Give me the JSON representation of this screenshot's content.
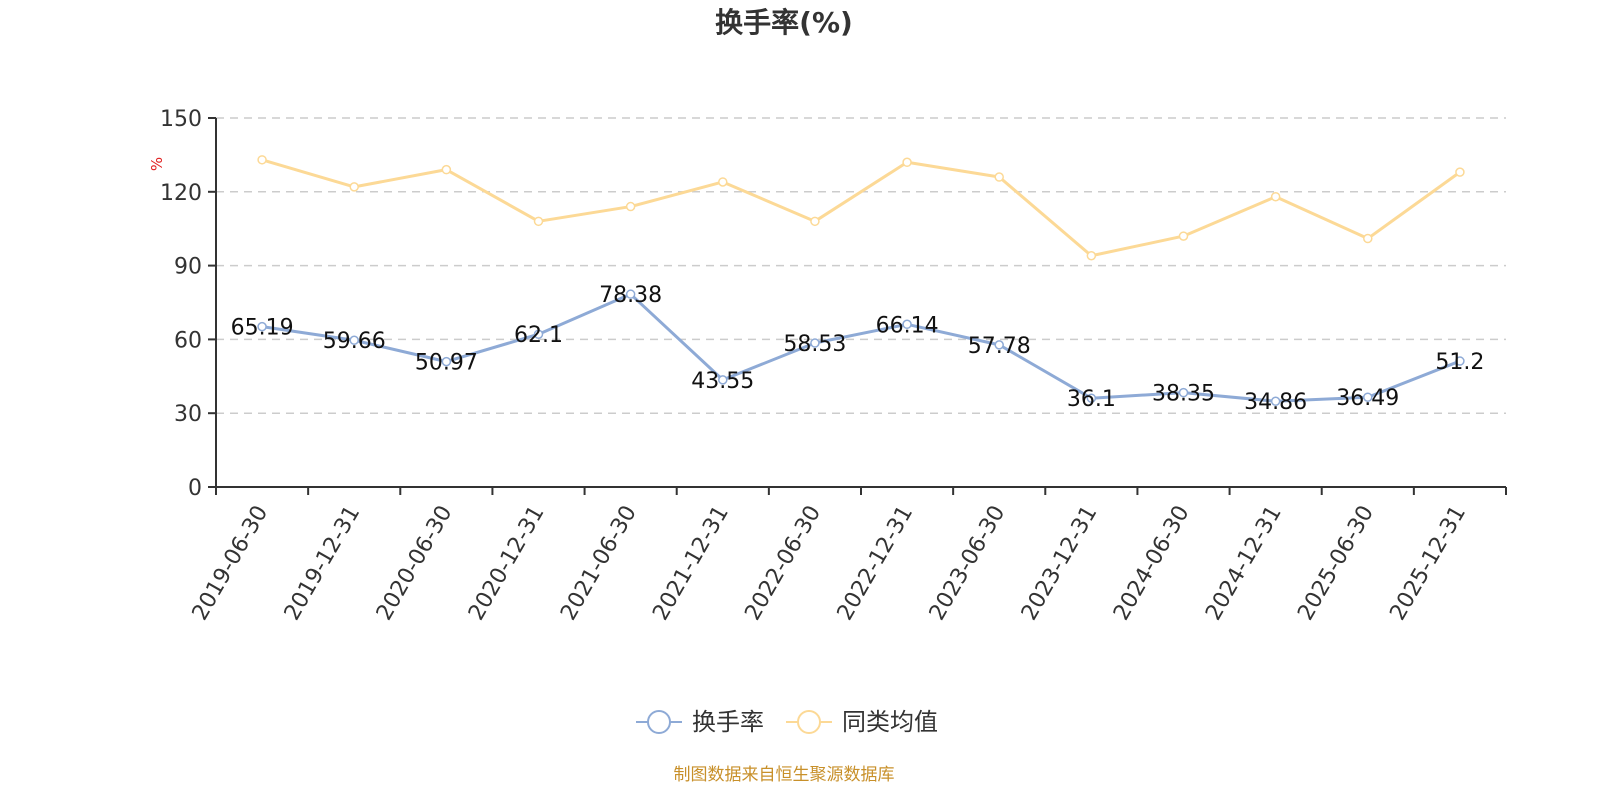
{
  "chart_data": {
    "type": "line",
    "title": "换手率(%)",
    "ylabel": "%",
    "xlabel": "",
    "ylim": [
      0,
      150
    ],
    "yticks": [
      0,
      30,
      60,
      90,
      120,
      150
    ],
    "grid": true,
    "legend_position": "bottom-center",
    "categories": [
      "2019-06-30",
      "2019-12-31",
      "2020-06-30",
      "2020-12-31",
      "2021-06-30",
      "2021-12-31",
      "2022-06-30",
      "2022-12-31",
      "2023-06-30",
      "2023-12-31",
      "2024-06-30",
      "2024-12-31",
      "2025-06-30",
      "2025-12-31"
    ],
    "series": [
      {
        "name": "换手率",
        "color": "#8eaad6",
        "show_labels": true,
        "values": [
          65.19,
          59.66,
          50.97,
          62.1,
          78.38,
          43.55,
          58.53,
          66.14,
          57.78,
          36.1,
          38.35,
          34.86,
          36.49,
          51.2
        ]
      },
      {
        "name": "同类均值",
        "color": "#fcd996",
        "show_labels": false,
        "values": [
          133,
          122,
          129,
          108,
          114,
          124,
          108,
          132,
          126,
          94,
          102,
          118,
          101,
          128
        ]
      }
    ],
    "source": "制图数据来自恒生聚源数据库"
  }
}
